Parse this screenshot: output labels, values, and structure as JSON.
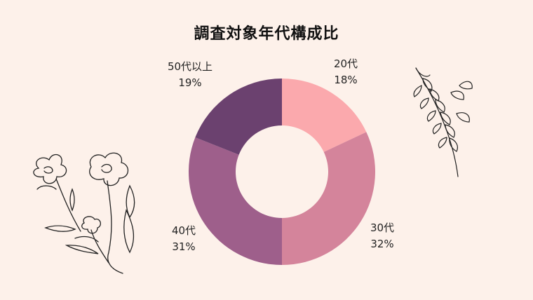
{
  "title": "調査対象年代構成比",
  "chart_data": {
    "type": "pie",
    "donut": true,
    "title": "調査対象年代構成比",
    "slices": [
      {
        "label": "20代",
        "value": 18,
        "value_label": "18%",
        "color": "#fba9ad"
      },
      {
        "label": "30代",
        "value": 32,
        "value_label": "32%",
        "color": "#d4849b"
      },
      {
        "label": "40代",
        "value": 31,
        "value_label": "31%",
        "color": "#9e5f8b"
      },
      {
        "label": "50代以上",
        "value": 19,
        "value_label": "19%",
        "color": "#6b416f"
      }
    ]
  },
  "decor": {
    "left_illustration": "flower-line-art-icon",
    "right_illustration": "leaf-branch-line-art-icon"
  }
}
